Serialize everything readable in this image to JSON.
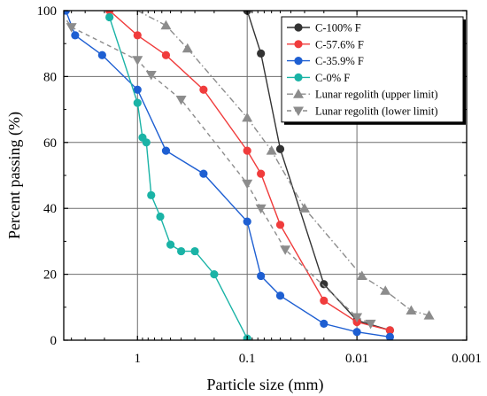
{
  "chart_data": {
    "type": "line",
    "xlabel": "Particle size (mm)",
    "ylabel": "Percent passing (%)",
    "x_scale": "log",
    "x_reversed": true,
    "xlim": [
      4.7,
      0.001
    ],
    "ylim": [
      0,
      100
    ],
    "x_ticks": [
      {
        "value": 1,
        "label": "1"
      },
      {
        "value": 0.1,
        "label": "0.1"
      },
      {
        "value": 0.01,
        "label": "0.01"
      },
      {
        "value": 0.001,
        "label": "0.001"
      }
    ],
    "y_ticks": [
      0,
      20,
      40,
      60,
      80,
      100
    ],
    "grid": true,
    "legend_position": "top-right",
    "series": [
      {
        "name": "C-100% F",
        "color": "#333333",
        "marker": "circle",
        "line": "solid",
        "x": [
          0.1,
          0.075,
          0.05,
          0.02,
          0.01,
          0.005
        ],
        "y": [
          100,
          87,
          58,
          17,
          6,
          3
        ]
      },
      {
        "name": "C-57.6% F",
        "color": "#f03c3c",
        "marker": "circle",
        "line": "solid",
        "x": [
          1.8,
          1.0,
          0.55,
          0.25,
          0.1,
          0.075,
          0.05,
          0.02,
          0.01,
          0.005
        ],
        "y": [
          100,
          92.5,
          86.5,
          76,
          57.5,
          50.5,
          35,
          12,
          5.5,
          3
        ]
      },
      {
        "name": "C-35.9% F",
        "color": "#1e5fd2",
        "marker": "circle",
        "line": "solid",
        "x": [
          4.5,
          3.7,
          2.1,
          1.0,
          0.55,
          0.25,
          0.1,
          0.075,
          0.05,
          0.02,
          0.01,
          0.005
        ],
        "y": [
          100,
          92.5,
          86.5,
          76,
          57.5,
          50.5,
          36,
          19.5,
          13.5,
          5,
          2.5,
          1
        ]
      },
      {
        "name": "C-0% F",
        "color": "#1ab3a6",
        "marker": "circle",
        "line": "solid",
        "x": [
          1.8,
          1.0,
          0.9,
          0.83,
          0.75,
          0.62,
          0.5,
          0.4,
          0.3,
          0.2,
          0.1
        ],
        "y": [
          98,
          72,
          61.5,
          60,
          44,
          37.5,
          29,
          27,
          27,
          20,
          0.5
        ]
      },
      {
        "name": "Lunar regolith (upper limit)",
        "color": "#8c8c8c",
        "marker": "triangle-up",
        "line": "dash-dot",
        "x": [
          0.55,
          0.35,
          0.1,
          0.06,
          0.03,
          0.009,
          0.0055,
          0.0032,
          0.0022
        ],
        "y": [
          95.5,
          88.5,
          67.5,
          57.5,
          40,
          19.5,
          15,
          9,
          7.5
        ],
        "line_start": {
          "x": 1.0,
          "y": 100
        }
      },
      {
        "name": "Lunar regolith (lower limit)",
        "color": "#8c8c8c",
        "marker": "triangle-down",
        "line": "dashed",
        "x": [
          4.0,
          1.0,
          0.75,
          0.4,
          0.1,
          0.075,
          0.045,
          0.01,
          0.0075
        ],
        "y": [
          95,
          85,
          80.5,
          73,
          47.5,
          40,
          27.5,
          7,
          5
        ],
        "line_start": {
          "x": 4.4,
          "y": 97
        }
      }
    ]
  }
}
